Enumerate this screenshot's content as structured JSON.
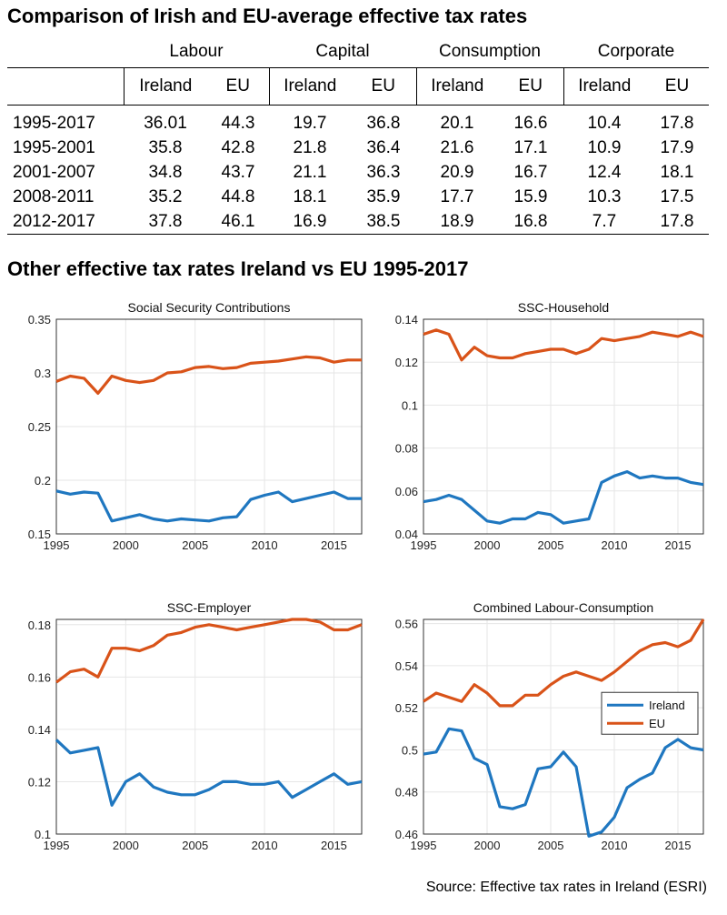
{
  "header": {
    "title": "Comparison of Irish and EU-average effective tax rates"
  },
  "table": {
    "groups": [
      "Labour",
      "Capital",
      "Consumption",
      "Corporate"
    ],
    "subheaders": [
      "Ireland",
      "EU"
    ],
    "rows": [
      {
        "period": "1995-2017",
        "values": [
          "36.01",
          "44.3",
          "19.7",
          "36.8",
          "20.1",
          "16.6",
          "10.4",
          "17.8"
        ]
      },
      {
        "period": "1995-2001",
        "values": [
          "35.8",
          "42.8",
          "21.8",
          "36.4",
          "21.6",
          "17.1",
          "10.9",
          "17.9"
        ]
      },
      {
        "period": "2001-2007",
        "values": [
          "34.8",
          "43.7",
          "21.1",
          "36.3",
          "20.9",
          "16.7",
          "12.4",
          "18.1"
        ]
      },
      {
        "period": "2008-2011",
        "values": [
          "35.2",
          "44.8",
          "18.1",
          "35.9",
          "17.7",
          "15.9",
          "10.3",
          "17.5"
        ]
      },
      {
        "period": "2012-2017",
        "values": [
          "37.8",
          "46.1",
          "16.9",
          "38.5",
          "18.9",
          "16.8",
          "7.7",
          "17.8"
        ]
      }
    ]
  },
  "section2": {
    "title": "Other effective tax rates Ireland vs EU 1995-2017"
  },
  "colors": {
    "ireland": "#1f77c0",
    "eu": "#d95319",
    "grid": "#e6e6e6"
  },
  "chart_data": [
    {
      "type": "line",
      "title": "Social Security Contributions",
      "x": [
        1995,
        1996,
        1997,
        1998,
        1999,
        2000,
        2001,
        2002,
        2003,
        2004,
        2005,
        2006,
        2007,
        2008,
        2009,
        2010,
        2011,
        2012,
        2013,
        2014,
        2015,
        2016,
        2017
      ],
      "xlim": [
        1995,
        2017
      ],
      "xticks": [
        1995,
        2000,
        2005,
        2010,
        2015
      ],
      "ylim": [
        0.15,
        0.35
      ],
      "yticks": [
        "0.15",
        "0.2",
        "0.25",
        "0.3",
        "0.35"
      ],
      "series": [
        {
          "key": "ireland",
          "values": [
            0.19,
            0.187,
            0.189,
            0.188,
            0.162,
            0.165,
            0.168,
            0.164,
            0.162,
            0.164,
            0.163,
            0.162,
            0.165,
            0.166,
            0.182,
            0.186,
            0.189,
            0.18,
            0.183,
            0.186,
            0.189,
            0.183,
            0.183
          ]
        },
        {
          "key": "eu",
          "values": [
            0.292,
            0.297,
            0.295,
            0.281,
            0.297,
            0.293,
            0.291,
            0.293,
            0.3,
            0.301,
            0.305,
            0.306,
            0.304,
            0.305,
            0.309,
            0.31,
            0.311,
            0.313,
            0.315,
            0.314,
            0.31,
            0.312,
            0.312
          ]
        }
      ]
    },
    {
      "type": "line",
      "title": "SSC-Household",
      "x": [
        1995,
        1996,
        1997,
        1998,
        1999,
        2000,
        2001,
        2002,
        2003,
        2004,
        2005,
        2006,
        2007,
        2008,
        2009,
        2010,
        2011,
        2012,
        2013,
        2014,
        2015,
        2016,
        2017
      ],
      "xlim": [
        1995,
        2017
      ],
      "xticks": [
        1995,
        2000,
        2005,
        2010,
        2015
      ],
      "ylim": [
        0.04,
        0.14
      ],
      "yticks": [
        "0.04",
        "0.06",
        "0.08",
        "0.1",
        "0.12",
        "0.14"
      ],
      "series": [
        {
          "key": "ireland",
          "values": [
            0.055,
            0.056,
            0.058,
            0.056,
            0.051,
            0.046,
            0.045,
            0.047,
            0.047,
            0.05,
            0.049,
            0.045,
            0.046,
            0.047,
            0.064,
            0.067,
            0.069,
            0.066,
            0.067,
            0.066,
            0.066,
            0.064,
            0.063
          ]
        },
        {
          "key": "eu",
          "values": [
            0.133,
            0.135,
            0.133,
            0.121,
            0.127,
            0.123,
            0.122,
            0.122,
            0.124,
            0.125,
            0.126,
            0.126,
            0.124,
            0.126,
            0.131,
            0.13,
            0.131,
            0.132,
            0.134,
            0.133,
            0.132,
            0.134,
            0.132
          ]
        }
      ]
    },
    {
      "type": "line",
      "title": "SSC-Employer",
      "x": [
        1995,
        1996,
        1997,
        1998,
        1999,
        2000,
        2001,
        2002,
        2003,
        2004,
        2005,
        2006,
        2007,
        2008,
        2009,
        2010,
        2011,
        2012,
        2013,
        2014,
        2015,
        2016,
        2017
      ],
      "xlim": [
        1995,
        2017
      ],
      "xticks": [
        1995,
        2000,
        2005,
        2010,
        2015
      ],
      "ylim": [
        0.1,
        0.182
      ],
      "yticks": [
        "0.1",
        "0.12",
        "0.14",
        "0.16",
        "0.18"
      ],
      "series": [
        {
          "key": "ireland",
          "values": [
            0.136,
            0.131,
            0.132,
            0.133,
            0.111,
            0.12,
            0.123,
            0.118,
            0.116,
            0.115,
            0.115,
            0.117,
            0.12,
            0.12,
            0.119,
            0.119,
            0.12,
            0.114,
            0.117,
            0.12,
            0.123,
            0.119,
            0.12
          ]
        },
        {
          "key": "eu",
          "values": [
            0.158,
            0.162,
            0.163,
            0.16,
            0.171,
            0.171,
            0.17,
            0.172,
            0.176,
            0.177,
            0.179,
            0.18,
            0.179,
            0.178,
            0.179,
            0.18,
            0.181,
            0.182,
            0.182,
            0.181,
            0.178,
            0.178,
            0.18
          ]
        }
      ]
    },
    {
      "type": "line",
      "title": "Combined Labour-Consumption",
      "x": [
        1995,
        1996,
        1997,
        1998,
        1999,
        2000,
        2001,
        2002,
        2003,
        2004,
        2005,
        2006,
        2007,
        2008,
        2009,
        2010,
        2011,
        2012,
        2013,
        2014,
        2015,
        2016,
        2017
      ],
      "xlim": [
        1995,
        2017
      ],
      "xticks": [
        1995,
        2000,
        2005,
        2010,
        2015
      ],
      "ylim": [
        0.46,
        0.562
      ],
      "yticks": [
        "0.46",
        "0.48",
        "0.5",
        "0.52",
        "0.54",
        "0.56"
      ],
      "legend": {
        "position": "right",
        "entries": [
          "Ireland",
          "EU"
        ]
      },
      "series": [
        {
          "key": "ireland",
          "name": "Ireland",
          "values": [
            0.498,
            0.499,
            0.51,
            0.509,
            0.496,
            0.493,
            0.473,
            0.472,
            0.474,
            0.491,
            0.492,
            0.499,
            0.492,
            0.459,
            0.461,
            0.468,
            0.482,
            0.486,
            0.489,
            0.501,
            0.505,
            0.501,
            0.5
          ]
        },
        {
          "key": "eu",
          "name": "EU",
          "values": [
            0.523,
            0.527,
            0.525,
            0.523,
            0.531,
            0.527,
            0.521,
            0.521,
            0.526,
            0.526,
            0.531,
            0.535,
            0.537,
            0.535,
            0.533,
            0.537,
            0.542,
            0.547,
            0.55,
            0.551,
            0.549,
            0.552,
            0.562
          ]
        }
      ]
    }
  ],
  "footer": {
    "source": "Source: Effective tax rates in Ireland (ESRI)"
  }
}
